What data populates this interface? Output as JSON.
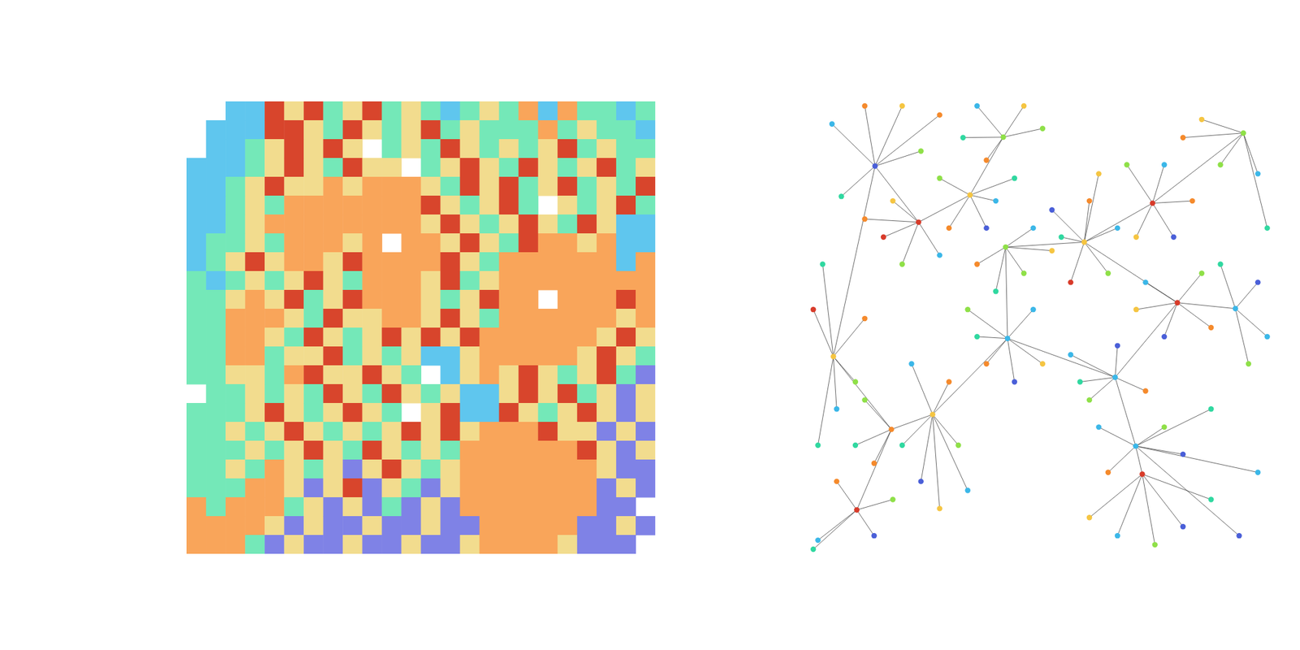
{
  "chart_data": [
    {
      "type": "heatmap",
      "tick_labels": false,
      "colors": [
        "#f9a55a",
        "#5fc6ee",
        "#74e8b8",
        "#f2dc8e",
        "#d8452c",
        "#7f82e6"
      ],
      "cells": [
        [
          null,
          null,
          1,
          1,
          4,
          3,
          4,
          2,
          3,
          4,
          2,
          3,
          2,
          1,
          2,
          3,
          2,
          0,
          1,
          0,
          2,
          2,
          1,
          2
        ],
        [
          null,
          1,
          1,
          1,
          4,
          4,
          3,
          2,
          4,
          3,
          2,
          3,
          4,
          2,
          3,
          2,
          2,
          2,
          0,
          2,
          3,
          2,
          2,
          1
        ],
        [
          null,
          1,
          1,
          2,
          3,
          4,
          3,
          4,
          3,
          null,
          2,
          3,
          2,
          4,
          3,
          2,
          3,
          2,
          3,
          4,
          2,
          3,
          2,
          2
        ],
        [
          1,
          1,
          1,
          2,
          3,
          4,
          3,
          2,
          4,
          3,
          3,
          null,
          2,
          3,
          4,
          3,
          2,
          4,
          3,
          2,
          3,
          4,
          2,
          3
        ],
        [
          1,
          1,
          2,
          3,
          4,
          3,
          3,
          0,
          3,
          0,
          0,
          0,
          3,
          2,
          4,
          3,
          4,
          2,
          3,
          4,
          2,
          3,
          2,
          4
        ],
        [
          1,
          1,
          2,
          3,
          2,
          0,
          0,
          0,
          0,
          0,
          0,
          0,
          4,
          3,
          2,
          3,
          4,
          2,
          null,
          3,
          2,
          3,
          4,
          2
        ],
        [
          1,
          1,
          2,
          3,
          0,
          0,
          0,
          0,
          0,
          0,
          0,
          0,
          3,
          4,
          3,
          2,
          3,
          4,
          3,
          2,
          4,
          3,
          1,
          1
        ],
        [
          1,
          2,
          2,
          3,
          2,
          0,
          0,
          0,
          3,
          0,
          null,
          0,
          0,
          3,
          4,
          3,
          2,
          4,
          0,
          0,
          3,
          0,
          1,
          1
        ],
        [
          1,
          2,
          3,
          4,
          3,
          0,
          0,
          3,
          4,
          0,
          0,
          0,
          0,
          4,
          3,
          2,
          0,
          0,
          0,
          0,
          0,
          0,
          1,
          0
        ],
        [
          2,
          1,
          2,
          3,
          2,
          3,
          4,
          3,
          2,
          0,
          0,
          0,
          3,
          4,
          2,
          3,
          0,
          0,
          0,
          0,
          0,
          0,
          0,
          0
        ],
        [
          2,
          2,
          3,
          0,
          3,
          4,
          2,
          3,
          4,
          0,
          0,
          0,
          3,
          2,
          3,
          4,
          0,
          0,
          null,
          0,
          0,
          0,
          4,
          0
        ],
        [
          2,
          2,
          0,
          0,
          0,
          3,
          2,
          4,
          3,
          3,
          0,
          0,
          3,
          4,
          3,
          2,
          0,
          0,
          0,
          0,
          0,
          0,
          3,
          0
        ],
        [
          2,
          2,
          0,
          0,
          3,
          2,
          4,
          3,
          2,
          3,
          4,
          3,
          4,
          3,
          4,
          0,
          0,
          0,
          0,
          0,
          0,
          3,
          4,
          3
        ],
        [
          2,
          2,
          0,
          0,
          2,
          3,
          3,
          4,
          2,
          3,
          2,
          3,
          1,
          1,
          3,
          0,
          0,
          0,
          0,
          0,
          3,
          4,
          3,
          2
        ],
        [
          2,
          2,
          3,
          3,
          2,
          0,
          4,
          3,
          3,
          4,
          3,
          2,
          null,
          1,
          3,
          0,
          3,
          4,
          3,
          2,
          3,
          4,
          2,
          5
        ],
        [
          null,
          2,
          2,
          3,
          2,
          3,
          2,
          4,
          3,
          2,
          4,
          3,
          2,
          3,
          1,
          1,
          3,
          4,
          3,
          4,
          2,
          3,
          5,
          3
        ],
        [
          2,
          2,
          2,
          3,
          4,
          3,
          2,
          3,
          4,
          3,
          2,
          null,
          3,
          4,
          1,
          1,
          4,
          3,
          2,
          3,
          4,
          3,
          5,
          3
        ],
        [
          2,
          2,
          3,
          2,
          3,
          4,
          3,
          2,
          3,
          2,
          3,
          4,
          3,
          4,
          3,
          0,
          0,
          0,
          4,
          3,
          3,
          5,
          3,
          5
        ],
        [
          2,
          2,
          2,
          3,
          2,
          3,
          4,
          3,
          2,
          4,
          3,
          2,
          3,
          2,
          0,
          0,
          0,
          0,
          0,
          0,
          4,
          3,
          5,
          3
        ],
        [
          2,
          2,
          3,
          2,
          0,
          3,
          2,
          3,
          5,
          3,
          4,
          3,
          2,
          3,
          0,
          0,
          0,
          0,
          0,
          0,
          0,
          3,
          5,
          5
        ],
        [
          2,
          2,
          2,
          0,
          0,
          3,
          5,
          3,
          4,
          5,
          3,
          2,
          5,
          3,
          0,
          0,
          0,
          0,
          0,
          0,
          0,
          5,
          3,
          5
        ],
        [
          0,
          2,
          0,
          0,
          0,
          2,
          3,
          5,
          3,
          5,
          2,
          5,
          3,
          5,
          0,
          0,
          0,
          0,
          0,
          0,
          0,
          5,
          5,
          null
        ],
        [
          0,
          0,
          0,
          0,
          3,
          5,
          3,
          5,
          5,
          3,
          5,
          5,
          3,
          5,
          5,
          0,
          0,
          0,
          0,
          0,
          5,
          5,
          3,
          5
        ],
        [
          0,
          0,
          0,
          2,
          5,
          3,
          5,
          5,
          3,
          5,
          5,
          3,
          5,
          5,
          3,
          0,
          0,
          0,
          0,
          3,
          5,
          5,
          5,
          null
        ]
      ]
    },
    {
      "type": "network",
      "tick_labels": false,
      "xlim": [
        0,
        100
      ],
      "ylim": [
        0,
        100
      ],
      "colors": [
        "#f58a2c",
        "#3bb7e8",
        "#8fe048",
        "#f5c542",
        "#d83b2a",
        "#4a5fd8",
        "#30d8a0"
      ],
      "nodes": {
        "x": [
          14.2,
          34.5,
          58.9,
          73.5,
          92.9,
          5.3,
          26.5,
          42.5,
          65.5,
          78.8,
          69.9,
          71.3,
          10.3,
          42.1,
          23.5,
          91.2,
          17.7,
          41.6,
          12,
          20,
          5,
          28,
          24,
          7,
          36,
          46,
          50,
          38,
          33,
          28,
          40,
          30,
          38,
          44,
          16,
          20,
          28,
          12,
          18,
          36,
          46,
          48,
          40,
          52,
          52,
          60,
          66,
          64,
          56,
          54,
          62,
          68,
          76,
          82,
          78,
          70,
          84,
          96,
          88,
          80,
          98,
          3,
          1,
          6,
          10,
          12,
          2,
          34,
          38,
          48,
          50,
          44,
          36,
          72,
          84,
          86,
          76,
          70,
          96,
          98,
          88,
          94,
          56,
          60,
          72,
          66,
          58,
          22,
          30,
          32,
          24,
          28,
          20,
          34,
          12,
          14,
          10,
          62,
          76,
          80,
          64,
          86,
          92,
          96,
          66,
          74,
          80,
          86,
          60,
          2,
          6,
          14,
          18,
          1
        ],
        "y": [
          14.3,
          20.7,
          31.1,
          22.5,
          7,
          56.4,
          69.2,
          52.4,
          61,
          44.5,
          76.2,
          82.4,
          90.3,
          32.2,
          26.7,
          45.8,
          72.5,
          7.9,
          1,
          1,
          5,
          3,
          11,
          21,
          1,
          1,
          6,
          13,
          8,
          17,
          22,
          28,
          28,
          17,
          30,
          36,
          34,
          26,
          22,
          36,
          38,
          28,
          42,
          33,
          24,
          22,
          28,
          38,
          40,
          30,
          16,
          14,
          14,
          22,
          30,
          30,
          4,
          16,
          14,
          8,
          28,
          36,
          46,
          68,
          62,
          48,
          76,
          46,
          58,
          46,
          58,
          62,
          52,
          40,
          38,
          50,
          52,
          46,
          40,
          52,
          36,
          58,
          56,
          66,
          64,
          54,
          62,
          58,
          62,
          76,
          84,
          90,
          76,
          86,
          66,
          80,
          76,
          72,
          72,
          78,
          82,
          68,
          96,
          82,
          96,
          98,
          94,
          88,
          92,
          97,
          84,
          96,
          88,
          99
        ],
        "group": [
          5,
          3,
          3,
          4,
          2,
          3,
          3,
          1,
          1,
          4,
          1,
          4,
          4,
          2,
          4,
          1,
          0,
          2,
          0,
          3,
          1,
          0,
          2,
          6,
          1,
          3,
          2,
          0,
          6,
          2,
          1,
          0,
          5,
          6,
          4,
          2,
          1,
          0,
          3,
          0,
          2,
          1,
          6,
          3,
          5,
          0,
          1,
          2,
          4,
          6,
          3,
          2,
          1,
          0,
          5,
          3,
          3,
          1,
          2,
          0,
          6,
          6,
          4,
          1,
          2,
          0,
          6,
          2,
          0,
          1,
          3,
          5,
          6,
          1,
          2,
          0,
          5,
          3,
          5,
          1,
          6,
          2,
          1,
          2,
          0,
          5,
          6,
          1,
          0,
          2,
          5,
          3,
          6,
          1,
          2,
          0,
          6,
          1,
          2,
          5,
          0,
          6,
          5,
          1,
          1,
          2,
          5,
          6,
          3,
          1,
          0,
          5,
          2,
          6
        ]
      },
      "edges": [
        [
          0,
          18
        ],
        [
          0,
          19
        ],
        [
          0,
          20
        ],
        [
          0,
          21
        ],
        [
          0,
          22
        ],
        [
          0,
          23
        ],
        [
          17,
          24
        ],
        [
          17,
          25
        ],
        [
          17,
          26
        ],
        [
          17,
          27
        ],
        [
          17,
          28
        ],
        [
          1,
          29
        ],
        [
          1,
          30
        ],
        [
          1,
          31
        ],
        [
          1,
          32
        ],
        [
          1,
          33
        ],
        [
          14,
          34
        ],
        [
          14,
          35
        ],
        [
          14,
          36
        ],
        [
          14,
          37
        ],
        [
          14,
          38
        ],
        [
          13,
          39
        ],
        [
          13,
          40
        ],
        [
          13,
          41
        ],
        [
          13,
          42
        ],
        [
          13,
          43
        ],
        [
          2,
          44
        ],
        [
          2,
          45
        ],
        [
          2,
          46
        ],
        [
          2,
          47
        ],
        [
          2,
          48
        ],
        [
          2,
          49
        ],
        [
          2,
          50
        ],
        [
          3,
          51
        ],
        [
          3,
          52
        ],
        [
          3,
          53
        ],
        [
          3,
          54
        ],
        [
          3,
          55
        ],
        [
          4,
          56
        ],
        [
          4,
          57
        ],
        [
          4,
          58
        ],
        [
          4,
          59
        ],
        [
          4,
          60
        ],
        [
          5,
          61
        ],
        [
          5,
          62
        ],
        [
          5,
          63
        ],
        [
          5,
          64
        ],
        [
          5,
          65
        ],
        [
          5,
          66
        ],
        [
          7,
          67
        ],
        [
          7,
          68
        ],
        [
          7,
          69
        ],
        [
          7,
          70
        ],
        [
          7,
          71
        ],
        [
          7,
          72
        ],
        [
          9,
          73
        ],
        [
          9,
          74
        ],
        [
          9,
          75
        ],
        [
          9,
          76
        ],
        [
          9,
          77
        ],
        [
          15,
          78
        ],
        [
          15,
          79
        ],
        [
          15,
          80
        ],
        [
          15,
          81
        ],
        [
          8,
          82
        ],
        [
          8,
          83
        ],
        [
          8,
          84
        ],
        [
          8,
          85
        ],
        [
          8,
          86
        ],
        [
          6,
          87
        ],
        [
          6,
          88
        ],
        [
          6,
          89
        ],
        [
          6,
          90
        ],
        [
          6,
          91
        ],
        [
          6,
          92
        ],
        [
          6,
          93
        ],
        [
          16,
          94
        ],
        [
          16,
          95
        ],
        [
          16,
          96
        ],
        [
          10,
          97
        ],
        [
          10,
          98
        ],
        [
          10,
          99
        ],
        [
          10,
          100
        ],
        [
          10,
          101
        ],
        [
          10,
          102
        ],
        [
          10,
          103
        ],
        [
          11,
          104
        ],
        [
          11,
          105
        ],
        [
          11,
          106
        ],
        [
          11,
          107
        ],
        [
          11,
          108
        ],
        [
          12,
          109
        ],
        [
          12,
          110
        ],
        [
          12,
          111
        ],
        [
          12,
          112
        ],
        [
          12,
          113
        ],
        [
          0,
          14
        ],
        [
          0,
          5
        ],
        [
          5,
          16
        ],
        [
          14,
          1
        ],
        [
          1,
          17
        ],
        [
          13,
          2
        ],
        [
          2,
          3
        ],
        [
          3,
          4
        ],
        [
          7,
          8
        ],
        [
          8,
          9
        ],
        [
          9,
          15
        ],
        [
          6,
          16
        ],
        [
          10,
          11
        ],
        [
          12,
          16
        ],
        [
          7,
          13
        ],
        [
          6,
          7
        ],
        [
          8,
          10
        ],
        [
          2,
          9
        ]
      ]
    }
  ]
}
